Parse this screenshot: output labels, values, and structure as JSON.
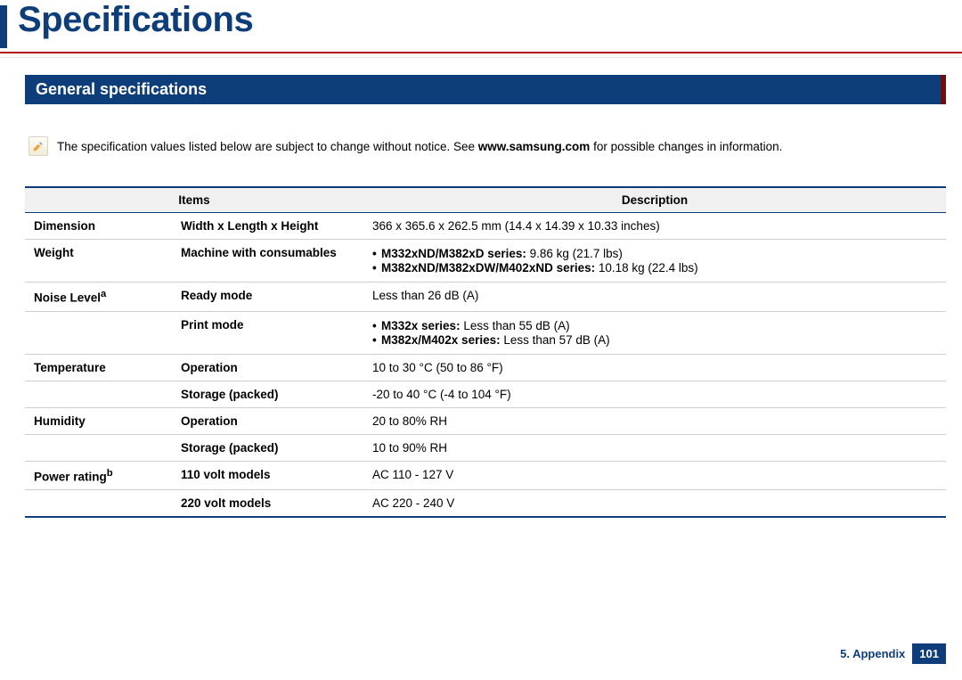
{
  "colors": {
    "brand_navy": "#0e3e7a",
    "brand_red": "#b11116",
    "rule_gray": "#bcbcbc",
    "border_navy": "#0e3e7a",
    "page_box_bg": "#0e3e7a"
  },
  "title": "Specifications",
  "section_header": "General specifications",
  "note": {
    "prefix": "The specification values listed below are subject to change without notice. See ",
    "bold": "www.samsung.com",
    "suffix": " for possible changes in information."
  },
  "table": {
    "headers": {
      "items": "Items",
      "description": "Description"
    },
    "rows": [
      {
        "group": "Dimension",
        "sub": "Width x Length x Height",
        "desc_plain": "366 x 365.6 x 262.5 mm (14.4 x 14.39 x 10.33 inches)"
      },
      {
        "group": "Weight",
        "sub": "Machine with consumables",
        "bullets": [
          {
            "bold": "M332xND/M382xD series:",
            "rest": " 9.86 kg (21.7 lbs)"
          },
          {
            "bold": "M382xND/M382xDW/M402xND series:",
            "rest": " 10.18 kg (22.4 lbs)"
          }
        ]
      },
      {
        "group": "Noise Level",
        "group_sup": "a",
        "sub": "Ready mode",
        "desc_plain": "Less than 26 dB (A)"
      },
      {
        "group": "",
        "sub": "Print mode",
        "bullets": [
          {
            "bold": "M332x series:",
            "rest": " Less than 55 dB (A)"
          },
          {
            "bold": "M382x/M402x series:",
            "rest": " Less than 57 dB (A)"
          }
        ]
      },
      {
        "group": "Temperature",
        "sub": "Operation",
        "desc_plain": "10 to 30 °C (50 to 86 °F)"
      },
      {
        "group": "",
        "sub": "Storage (packed)",
        "desc_plain": "-20 to 40 °C (-4 to 104 °F)"
      },
      {
        "group": "Humidity",
        "sub": "Operation",
        "desc_plain": "20 to 80% RH"
      },
      {
        "group": "",
        "sub": "Storage (packed)",
        "desc_plain": "10 to 90% RH"
      },
      {
        "group": "Power rating",
        "group_sup": "b",
        "sub": "110 volt models",
        "desc_plain": "AC 110 - 127 V"
      },
      {
        "group": "",
        "sub": "220 volt models",
        "desc_plain": "AC 220 - 240 V",
        "last": true
      }
    ]
  },
  "footer": {
    "chapter": "5. Appendix",
    "page": "101"
  }
}
